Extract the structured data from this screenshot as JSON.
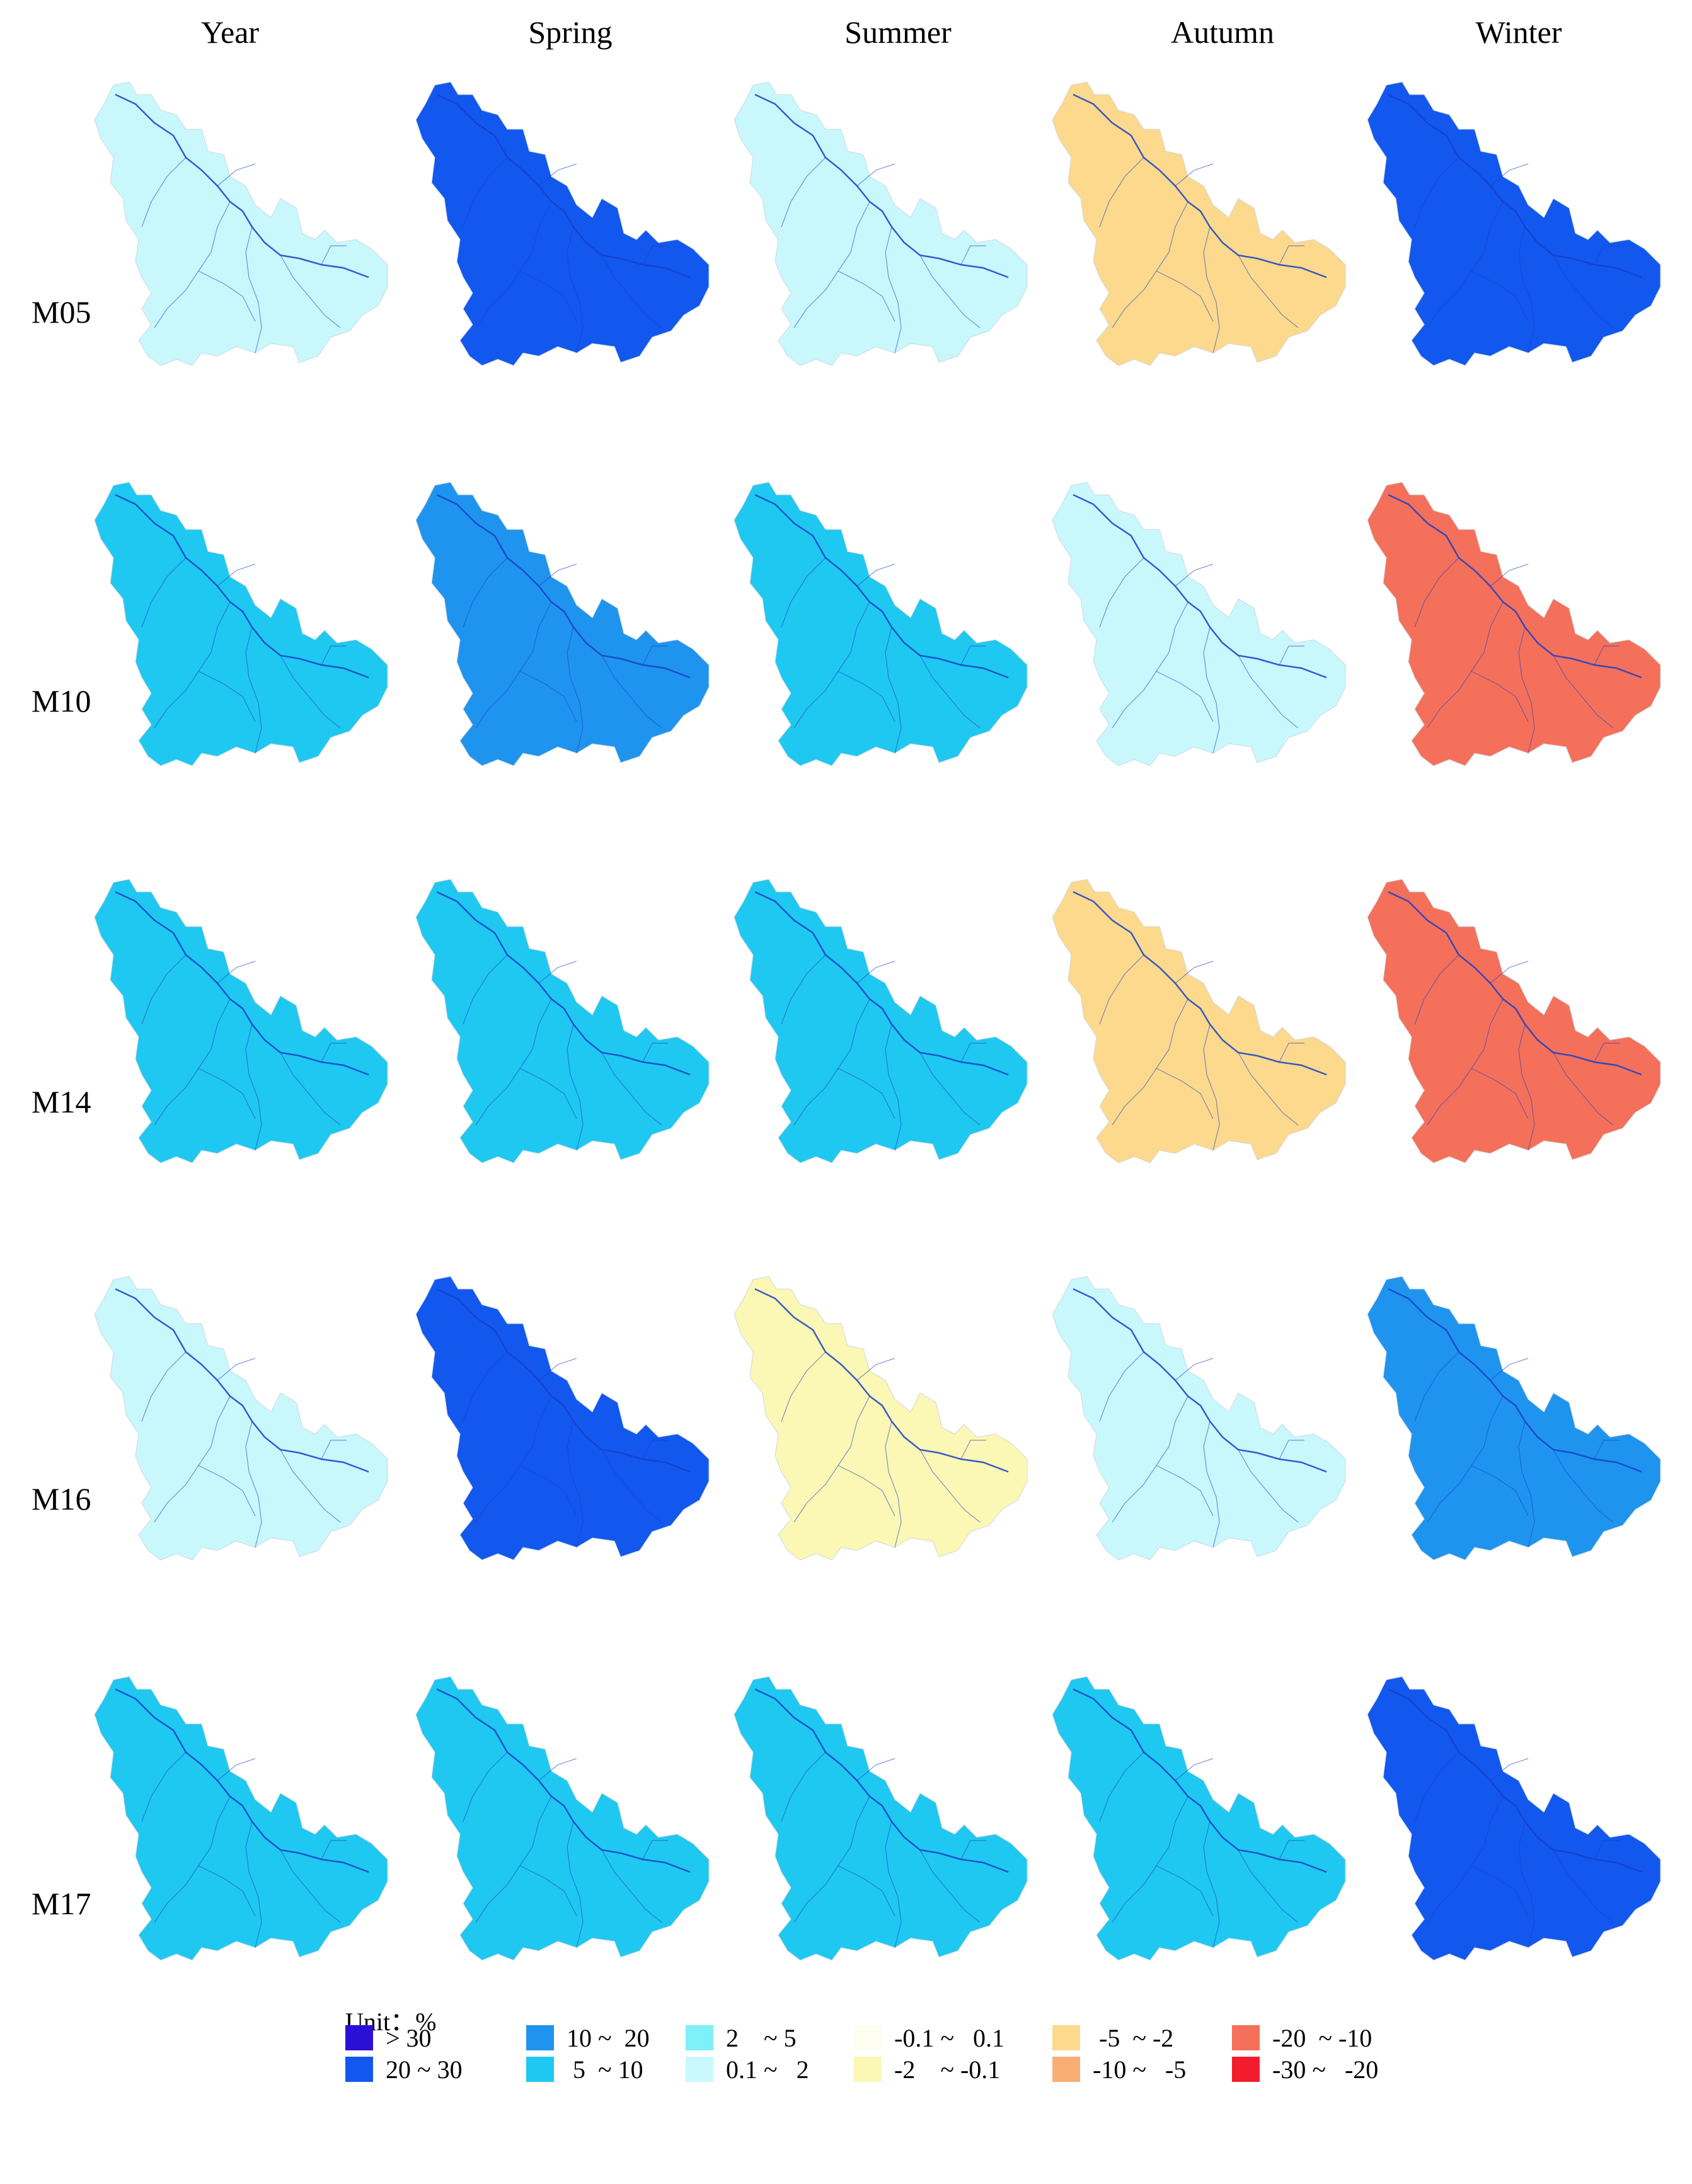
{
  "columns": [
    "Year",
    "Spring",
    "Summer",
    "Autumn",
    "Winter"
  ],
  "rows": [
    "M05",
    "M10",
    "M14",
    "M16",
    "M17"
  ],
  "legend": {
    "title": "Unit：%",
    "classes": [
      {
        "label": "> 30",
        "color": "#2a10d6"
      },
      {
        "label": "20 ~ 30",
        "color": "#1258ee"
      },
      {
        "label": "10 ~  20",
        "color": "#1f94ee"
      },
      {
        "label": " 5  ~ 10",
        "color": "#1fc8f0"
      },
      {
        "label": "2    ~ 5",
        "color": "#7ef0f7"
      },
      {
        "label": "0.1 ~   2",
        "color": "#c8f8fc"
      },
      {
        "label": "-0.1 ~   0.1",
        "color": "#fdfdf0"
      },
      {
        "label": "-2    ~ -0.1",
        "color": "#fbf7b4"
      },
      {
        "label": " -5  ~ -2",
        "color": "#fcd98c"
      },
      {
        "label": "-10 ~   -5",
        "color": "#f8ad72"
      },
      {
        "label": "-20  ~ -10",
        "color": "#f5705a"
      },
      {
        "label": "-30 ~   -20",
        "color": "#f21c2c"
      }
    ]
  },
  "map_classes": {
    "M05": {
      "Year": 5,
      "Spring": 1,
      "Summer": 5,
      "Autumn": 8,
      "Winter": 1
    },
    "M10": {
      "Year": 3,
      "Spring": 2,
      "Summer": 3,
      "Autumn": 5,
      "Winter": 10
    },
    "M14": {
      "Year": 3,
      "Spring": 3,
      "Summer": 3,
      "Autumn": 8,
      "Winter": 10
    },
    "M16": {
      "Year": 5,
      "Spring": 1,
      "Summer": 7,
      "Autumn": 5,
      "Winter": 2
    },
    "M17": {
      "Year": 3,
      "Spring": 3,
      "Summer": 3,
      "Autumn": 3,
      "Winter": 1
    }
  },
  "river_color": "#1840c8"
}
